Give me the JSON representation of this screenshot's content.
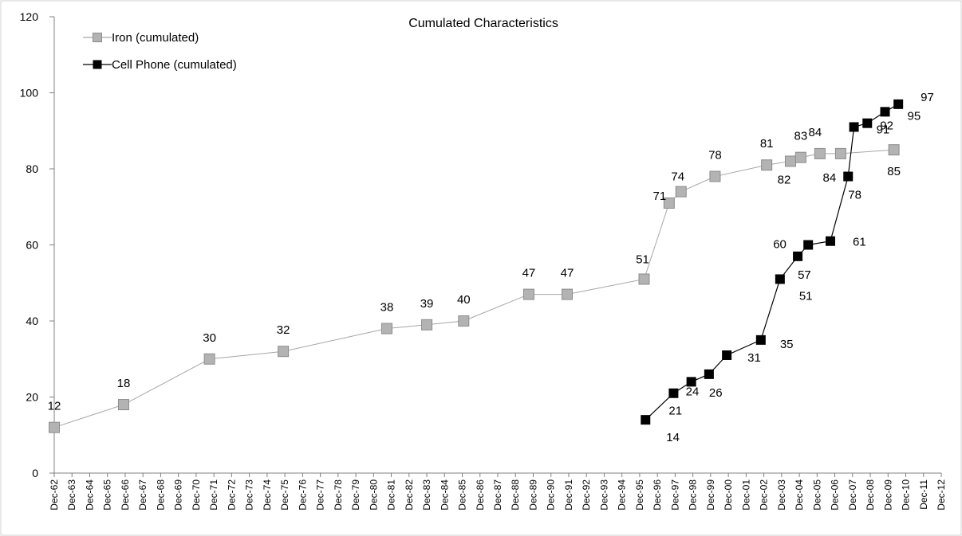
{
  "chart_data": {
    "type": "line",
    "title": "Cumulated Characteristics",
    "xlabel": "",
    "ylabel": "",
    "ylim": [
      0,
      120
    ],
    "yticks": [
      0,
      20,
      40,
      60,
      80,
      100,
      120
    ],
    "xtick_labels": [
      "Dec-62",
      "Dec-63",
      "Dec-64",
      "Dec-65",
      "Dec-66",
      "Dec-67",
      "Dec-68",
      "Dec-69",
      "Dec-70",
      "Dec-71",
      "Dec-72",
      "Dec-73",
      "Dec-74",
      "Dec-75",
      "Dec-76",
      "Dec-77",
      "Dec-78",
      "Dec-79",
      "Dec-80",
      "Dec-81",
      "Dec-82",
      "Dec-83",
      "Dec-84",
      "Dec-85",
      "Dec-86",
      "Dec-87",
      "Dec-88",
      "Dec-89",
      "Dec-90",
      "Dec-91",
      "Dec-92",
      "Dec-93",
      "Dec-94",
      "Dec-95",
      "Dec-96",
      "Dec-97",
      "Dec-98",
      "Dec-99",
      "Dec-00",
      "Dec-01",
      "Dec-02",
      "Dec-03",
      "Dec-04",
      "Dec-05",
      "Dec-06",
      "Dec-07",
      "Dec-08",
      "Dec-09",
      "Dec-10",
      "Dec-11",
      "Dec-12"
    ],
    "xlim": [
      1962.92,
      2012.92
    ],
    "grid": false,
    "legend_position": "top-left",
    "series": [
      {
        "name": "Iron (cumulated)",
        "color": "#a6a6a6",
        "marker": "square",
        "points": [
          {
            "x": 1962.92,
            "y": 12,
            "label": "12"
          },
          {
            "x": 1966.83,
            "y": 18,
            "label": "18"
          },
          {
            "x": 1971.67,
            "y": 30,
            "label": "30"
          },
          {
            "x": 1975.83,
            "y": 32,
            "label": "32"
          },
          {
            "x": 1981.67,
            "y": 38,
            "label": "38"
          },
          {
            "x": 1983.92,
            "y": 39,
            "label": "39"
          },
          {
            "x": 1986.0,
            "y": 40,
            "label": "40"
          },
          {
            "x": 1989.67,
            "y": 47,
            "label": "47"
          },
          {
            "x": 1991.83,
            "y": 47,
            "label": "47"
          },
          {
            "x": 1996.17,
            "y": 51,
            "label": "51"
          },
          {
            "x": 1997.58,
            "y": 71,
            "label": "71"
          },
          {
            "x": 1998.25,
            "y": 74,
            "label": "74"
          },
          {
            "x": 2000.17,
            "y": 78,
            "label": "78"
          },
          {
            "x": 2003.08,
            "y": 81,
            "label": "81"
          },
          {
            "x": 2004.42,
            "y": 82,
            "label": "82"
          },
          {
            "x": 2005.0,
            "y": 83,
            "label": "83"
          },
          {
            "x": 2006.08,
            "y": 84,
            "label": "84"
          },
          {
            "x": 2007.25,
            "y": 84,
            "label": "84"
          },
          {
            "x": 2010.25,
            "y": 85,
            "label": "85"
          }
        ]
      },
      {
        "name": "Cell Phone (cumulated)",
        "color": "#000000",
        "marker": "square",
        "points": [
          {
            "x": 1996.25,
            "y": 14,
            "label": "14"
          },
          {
            "x": 1997.83,
            "y": 21,
            "label": "21"
          },
          {
            "x": 1998.83,
            "y": 24,
            "label": "24"
          },
          {
            "x": 1999.83,
            "y": 26,
            "label": "26"
          },
          {
            "x": 2000.83,
            "y": 31,
            "label": "31"
          },
          {
            "x": 2002.75,
            "y": 35,
            "label": "35"
          },
          {
            "x": 2003.83,
            "y": 51,
            "label": "51"
          },
          {
            "x": 2004.83,
            "y": 57,
            "label": "57"
          },
          {
            "x": 2005.42,
            "y": 60,
            "label": "60"
          },
          {
            "x": 2006.67,
            "y": 61,
            "label": "61"
          },
          {
            "x": 2007.67,
            "y": 78,
            "label": "78"
          },
          {
            "x": 2008.0,
            "y": 91,
            "label": "91"
          },
          {
            "x": 2008.75,
            "y": 92,
            "label": "92"
          },
          {
            "x": 2009.75,
            "y": 95,
            "label": "95"
          },
          {
            "x": 2010.5,
            "y": 97,
            "label": "97"
          }
        ]
      }
    ]
  }
}
